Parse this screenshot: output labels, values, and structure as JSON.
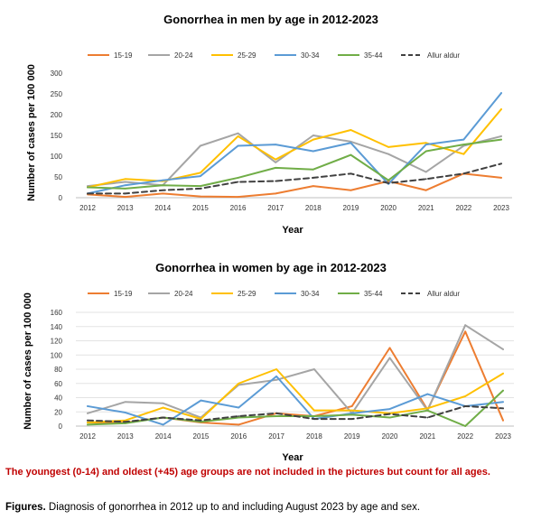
{
  "chart_data": [
    {
      "type": "line",
      "title": "Gonorrhea in men by age in 2012-2023",
      "xlabel": "Year",
      "ylabel": "Number of cases per 100 000",
      "categories": [
        "2012",
        "2013",
        "2014",
        "2015",
        "2016",
        "2017",
        "2018",
        "2019",
        "2020",
        "2021",
        "2022",
        "2023"
      ],
      "yticks": [
        "0",
        "50",
        "100",
        "150",
        "200",
        "250",
        "300"
      ],
      "ylim": [
        0,
        300
      ],
      "grid": false,
      "legend_position": "top",
      "series": [
        {
          "name": "15-19",
          "color": "#ED7D31",
          "dashed": false,
          "values": [
            8,
            2,
            10,
            3,
            2,
            10,
            28,
            18,
            40,
            18,
            58,
            48
          ]
        },
        {
          "name": "20-24",
          "color": "#A5A5A5",
          "dashed": false,
          "values": [
            28,
            38,
            30,
            125,
            155,
            85,
            150,
            135,
            105,
            62,
            125,
            148
          ]
        },
        {
          "name": "25-29",
          "color": "#FFC000",
          "dashed": false,
          "values": [
            25,
            45,
            40,
            60,
            148,
            92,
            140,
            163,
            122,
            132,
            105,
            213
          ]
        },
        {
          "name": "30-34",
          "color": "#5B9BD5",
          "dashed": false,
          "values": [
            10,
            30,
            42,
            52,
            125,
            128,
            112,
            132,
            33,
            128,
            140,
            252
          ]
        },
        {
          "name": "35-44",
          "color": "#70AD47",
          "dashed": false,
          "values": [
            25,
            22,
            30,
            28,
            48,
            72,
            68,
            103,
            42,
            112,
            128,
            140
          ]
        },
        {
          "name": "Allur aldur",
          "color": "#404040",
          "dashed": true,
          "values": [
            10,
            10,
            18,
            22,
            38,
            40,
            48,
            58,
            35,
            45,
            58,
            82
          ]
        }
      ]
    },
    {
      "type": "line",
      "title": "Gonorrhea in women by age in 2012-2023",
      "xlabel": "Year",
      "ylabel": "Number of cases per 100 000",
      "categories": [
        "2012",
        "2013",
        "2014",
        "2015",
        "2016",
        "2017",
        "2018",
        "2019",
        "2020",
        "2021",
        "2022",
        "2023"
      ],
      "yticks": [
        "0",
        "20",
        "40",
        "60",
        "80",
        "100",
        "120",
        "140",
        "160"
      ],
      "ylim": [
        0,
        160
      ],
      "grid": true,
      "legend_position": "top",
      "series": [
        {
          "name": "15-19",
          "color": "#ED7D31",
          "dashed": false,
          "values": [
            5,
            5,
            12,
            5,
            2,
            18,
            14,
            28,
            110,
            23,
            133,
            8
          ]
        },
        {
          "name": "20-24",
          "color": "#A5A5A5",
          "dashed": false,
          "values": [
            18,
            34,
            32,
            12,
            58,
            65,
            80,
            18,
            96,
            22,
            142,
            108
          ]
        },
        {
          "name": "25-29",
          "color": "#FFC000",
          "dashed": false,
          "values": [
            5,
            8,
            26,
            10,
            60,
            80,
            22,
            22,
            18,
            25,
            42,
            74
          ]
        },
        {
          "name": "30-34",
          "color": "#5B9BD5",
          "dashed": false,
          "values": [
            28,
            19,
            2,
            36,
            26,
            70,
            10,
            18,
            24,
            45,
            28,
            34
          ]
        },
        {
          "name": "35-44",
          "color": "#70AD47",
          "dashed": false,
          "values": [
            2,
            4,
            12,
            6,
            12,
            14,
            14,
            16,
            12,
            22,
            0,
            50
          ]
        },
        {
          "name": "Allur aldur",
          "color": "#404040",
          "dashed": true,
          "values": [
            8,
            6,
            12,
            8,
            14,
            18,
            10,
            10,
            17,
            12,
            28,
            25
          ]
        }
      ]
    }
  ],
  "footnote": "The youngest (0-14) and oldest (+45) age groups are not included in the pictures but count for all ages.",
  "caption": {
    "label": "Figures.",
    "text": " Diagnosis of gonorrhea in 2012 up to and including August 2023 by age and sex."
  }
}
